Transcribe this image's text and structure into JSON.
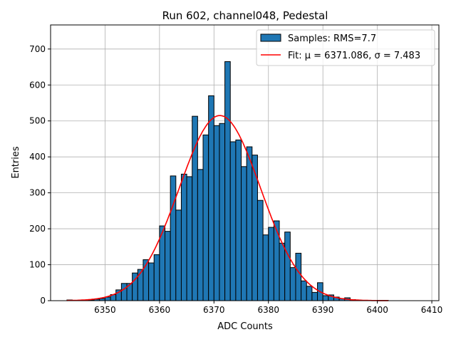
{
  "chart_data": {
    "type": "bar",
    "title": "Run 602, channel048, Pedestal",
    "xlabel": "ADC Counts",
    "ylabel": "Entries",
    "xlim": [
      6340,
      6411.3
    ],
    "ylim": [
      0,
      767
    ],
    "grid": true,
    "bin_width": 1,
    "bin_starts": [
      6343,
      6344,
      6345,
      6346,
      6347,
      6348,
      6349,
      6350,
      6351,
      6352,
      6353,
      6354,
      6355,
      6356,
      6357,
      6358,
      6359,
      6360,
      6361,
      6362,
      6363,
      6364,
      6365,
      6366,
      6367,
      6368,
      6369,
      6370,
      6371,
      6372,
      6373,
      6374,
      6375,
      6376,
      6377,
      6378,
      6379,
      6380,
      6381,
      6382,
      6383,
      6384,
      6385,
      6386,
      6387,
      6388,
      6389,
      6390,
      6391,
      6392,
      6393,
      6394,
      6395,
      6396,
      6397,
      6398,
      6399,
      6400,
      6401
    ],
    "values": [
      2,
      1,
      0,
      1,
      2,
      4,
      6,
      10,
      17,
      30,
      48,
      48,
      77,
      87,
      114,
      105,
      128,
      208,
      193,
      347,
      252,
      352,
      345,
      513,
      365,
      461,
      570,
      487,
      493,
      665,
      442,
      447,
      373,
      428,
      405,
      279,
      183,
      204,
      222,
      160,
      191,
      92,
      132,
      55,
      40,
      23,
      50,
      14,
      16,
      10,
      6,
      8,
      3,
      2,
      1,
      1,
      0,
      1,
      1
    ],
    "fit": {
      "mu": 6371.086,
      "sigma": 7.483,
      "peak": 515,
      "range": [
        6343,
        6402
      ]
    },
    "xticks": [
      "6350",
      "6360",
      "6370",
      "6380",
      "6390",
      "6400",
      "6410"
    ],
    "yticks": [
      "0",
      "100",
      "200",
      "300",
      "400",
      "500",
      "600",
      "700"
    ],
    "legend": {
      "placement": "top-right",
      "entries": [
        "Samples: RMS=7.7",
        "Fit: μ = 6371.086, σ = 7.483"
      ]
    },
    "colors": {
      "bar": "#1f77b4",
      "fit": "#ff0000"
    }
  }
}
